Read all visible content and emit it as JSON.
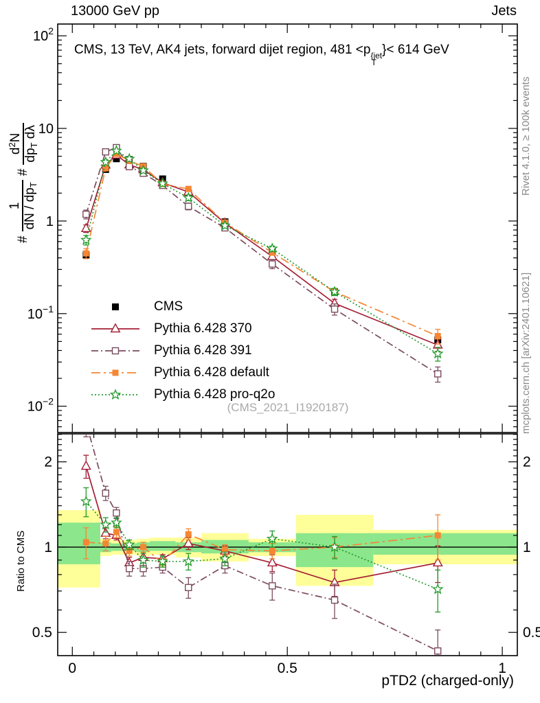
{
  "header": {
    "left": "13000 GeV pp",
    "right": "Jets"
  },
  "title_parts": {
    "main": "CMS, 13 TeV, AK4 jets, forward dijet region, 481 <p",
    "sup": "{jet",
    "sub": "T",
    "tail": "}< 614 GeV"
  },
  "watermark": "(CMS_2021_I1920187)",
  "side_notes": {
    "top": "Rivet 4.1.0, ≥ 100k events",
    "bottom": "mcplots.cern.ch [arXiv:2401.10621]"
  },
  "y_axis_parts": {
    "hash1": "#",
    "frac1_num": "1",
    "frac1_den_main": "dN / dp",
    "frac1_den_sub": "T",
    "hash2": "#",
    "frac2_num_main": "d",
    "frac2_num_sup": "2",
    "frac2_num_tail": "N",
    "frac2_den_main": "dp",
    "frac2_den_sub": "T",
    "frac2_den_tail": " dλ"
  },
  "chart_data": {
    "type": "line",
    "title": "CMS, 13 TeV, AK4 jets, forward dijet region, 481 <p_T^{jet}}< 614 GeV",
    "xlabel": "pTD2 (charged-only)",
    "ylabel": "# 1/(dN/dp_T)  # d2N/(dp_T dλ)",
    "ratio_ylabel": "Ratio to CMS",
    "x_frame_range": [
      -0.034,
      1.035
    ],
    "main_y_range": [
      0.0052,
      134
    ],
    "ratio_y_range": [
      0.414,
      2.51
    ],
    "grid": false,
    "legend_position": "middle-left",
    "x_ticks": [
      {
        "v": 0,
        "label": "0"
      },
      {
        "v": 0.5,
        "label": "0.5"
      },
      {
        "v": 1,
        "label": "1"
      }
    ],
    "x_minor_step": 0.05,
    "main_y_ticks": [
      {
        "v": 100,
        "base": "10",
        "exp": "2"
      },
      {
        "v": 10,
        "base": "10",
        "exp": ""
      },
      {
        "v": 1,
        "base": "1",
        "exp": ""
      },
      {
        "v": 0.1,
        "base": "10",
        "exp": "−1"
      },
      {
        "v": 0.01,
        "base": "10",
        "exp": "−2"
      }
    ],
    "ratio_y_ticks": [
      {
        "v": 2,
        "label": "2"
      },
      {
        "v": 1,
        "label": "1"
      },
      {
        "v": 0.5,
        "label": "0.5"
      }
    ],
    "x": [
      0.032,
      0.0775,
      0.1025,
      0.1325,
      0.165,
      0.21,
      0.27,
      0.355,
      0.465,
      0.61,
      0.85
    ],
    "cms": {
      "label": "CMS",
      "color": "#000000",
      "values": [
        0.43,
        3.6,
        4.7,
        4.6,
        3.9,
        2.85,
        2.0,
        0.98,
        0.47,
        0.172,
        0.052
      ]
    },
    "series": [
      {
        "name": "Pythia 6.428 370",
        "color": "#a41e34",
        "marker": "triangle",
        "dash": "solid",
        "ratio": [
          1.93,
          1.12,
          1.1,
          0.88,
          0.92,
          0.91,
          1.03,
          0.97,
          0.88,
          0.75,
          0.88
        ],
        "ratio_err": [
          0.18,
          0.05,
          0.04,
          0.04,
          0.04,
          0.03,
          0.05,
          0.04,
          0.06,
          0.08,
          0.13
        ]
      },
      {
        "name": "Pythia 6.428 391",
        "color": "#7a4b5e",
        "marker": "open-square",
        "dash": "dashdot",
        "ratio": [
          2.75,
          1.55,
          1.32,
          0.84,
          0.84,
          0.85,
          0.72,
          0.86,
          0.73,
          0.65,
          0.43
        ],
        "ratio_err": [
          0.3,
          0.09,
          0.06,
          0.05,
          0.05,
          0.04,
          0.06,
          0.05,
          0.08,
          0.09,
          0.08
        ]
      },
      {
        "name": "Pythia 6.428 default",
        "color": "#f58633",
        "marker": "filled-square",
        "dash": "dashdot2",
        "ratio": [
          1.04,
          1.03,
          1.13,
          0.97,
          1.0,
          0.88,
          1.11,
          0.98,
          0.97,
          1.0,
          1.1
        ],
        "ratio_err": [
          0.13,
          0.06,
          0.05,
          0.04,
          0.04,
          0.03,
          0.05,
          0.04,
          0.06,
          0.08,
          0.2
        ]
      },
      {
        "name": "Pythia 6.428 pro-q2o",
        "color": "#219a2b",
        "marker": "star",
        "dash": "dotted",
        "ratio": [
          1.45,
          1.2,
          1.22,
          1.02,
          0.9,
          0.89,
          0.89,
          0.91,
          1.07,
          1.0,
          0.71
        ],
        "ratio_err": [
          0.17,
          0.07,
          0.05,
          0.04,
          0.05,
          0.04,
          0.06,
          0.05,
          0.07,
          0.09,
          0.12
        ]
      }
    ],
    "bands": {
      "yellow_color": "#ffff99",
      "green_color": "#8ce68c",
      "edges": [
        0,
        0.065,
        0.09,
        0.115,
        0.15,
        0.18,
        0.24,
        0.3,
        0.41,
        0.52,
        0.7,
        1.0
      ],
      "yellow_lo": [
        0.72,
        0.93,
        0.94,
        0.94,
        0.93,
        0.94,
        0.92,
        0.89,
        0.93,
        0.73,
        0.87
      ],
      "yellow_hi": [
        1.35,
        1.07,
        1.06,
        1.06,
        1.07,
        1.08,
        1.08,
        1.12,
        1.07,
        1.3,
        1.15
      ],
      "green_lo": [
        0.87,
        0.96,
        0.97,
        0.97,
        0.96,
        0.97,
        0.96,
        0.95,
        0.96,
        0.85,
        0.94
      ],
      "green_hi": [
        1.22,
        1.04,
        1.03,
        1.03,
        1.04,
        1.05,
        1.04,
        1.06,
        1.04,
        1.12,
        1.12
      ]
    }
  }
}
